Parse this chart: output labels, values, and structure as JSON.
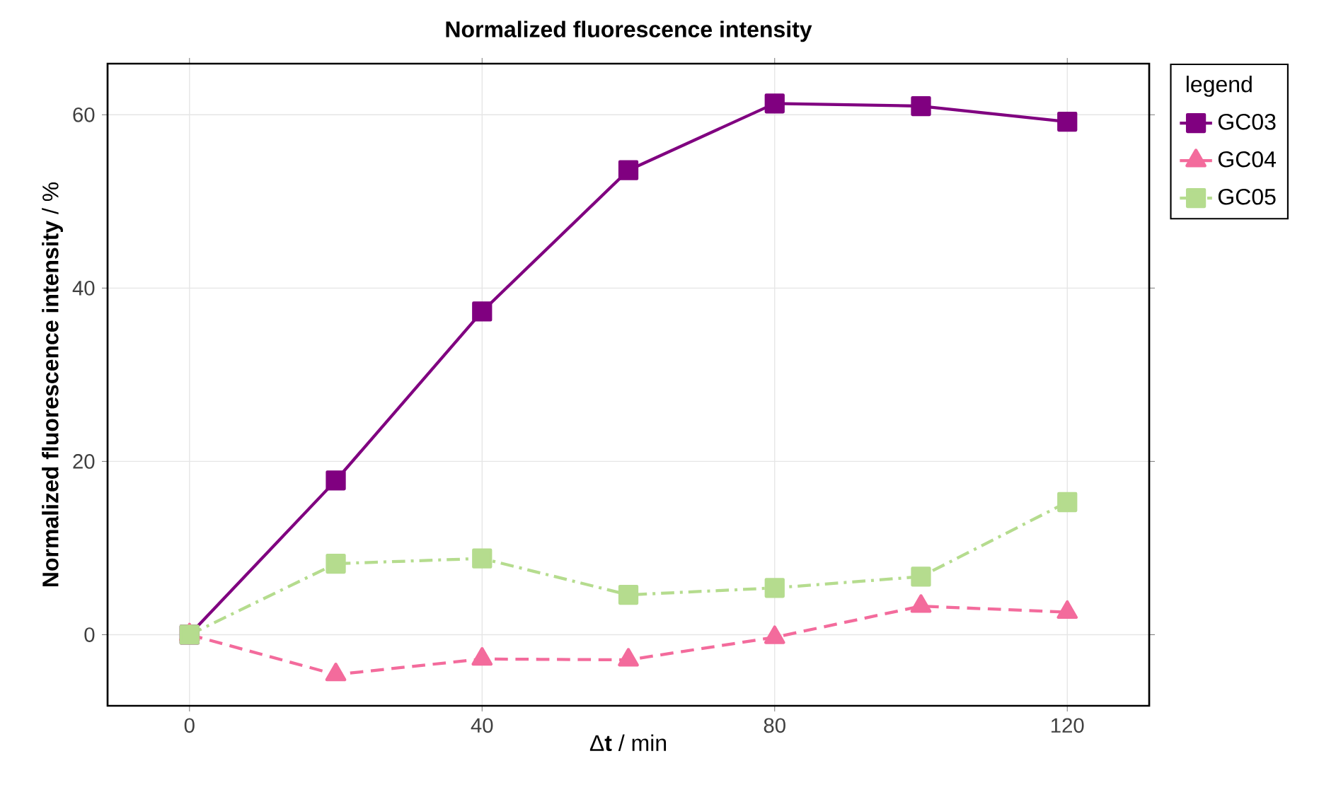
{
  "chart_data": {
    "type": "line",
    "title": "Normalized fluorescence intensity",
    "xlabel": "Δ**t** / min",
    "ylabel": "**Normalized  fluorescence intensity** / %",
    "legend_title": "legend",
    "x": [
      0,
      20,
      40,
      60,
      80,
      100,
      120
    ],
    "series": [
      {
        "name": "GC03",
        "color": "#800080",
        "marker": "square",
        "line_style": "solid",
        "values": [
          0,
          17.8,
          37.3,
          53.6,
          61.3,
          61.0,
          59.2
        ]
      },
      {
        "name": "GC04",
        "color": "#f36b9c",
        "marker": "triangle",
        "line_style": "dashed",
        "values": [
          0,
          -4.6,
          -2.8,
          -2.9,
          -0.3,
          3.3,
          2.6
        ]
      },
      {
        "name": "GC05",
        "color": "#b5dc8e",
        "marker": "square",
        "line_style": "dashdot",
        "values": [
          0,
          8.2,
          8.8,
          4.6,
          5.4,
          6.7,
          15.3
        ]
      }
    ],
    "xlim": [
      -11.2,
      131.2
    ],
    "ylim": [
      -8.2,
      65.9
    ],
    "xticks": [
      0,
      40,
      80,
      120
    ],
    "yticks": [
      0,
      20,
      40,
      60
    ],
    "grid": true,
    "legend": "right"
  }
}
